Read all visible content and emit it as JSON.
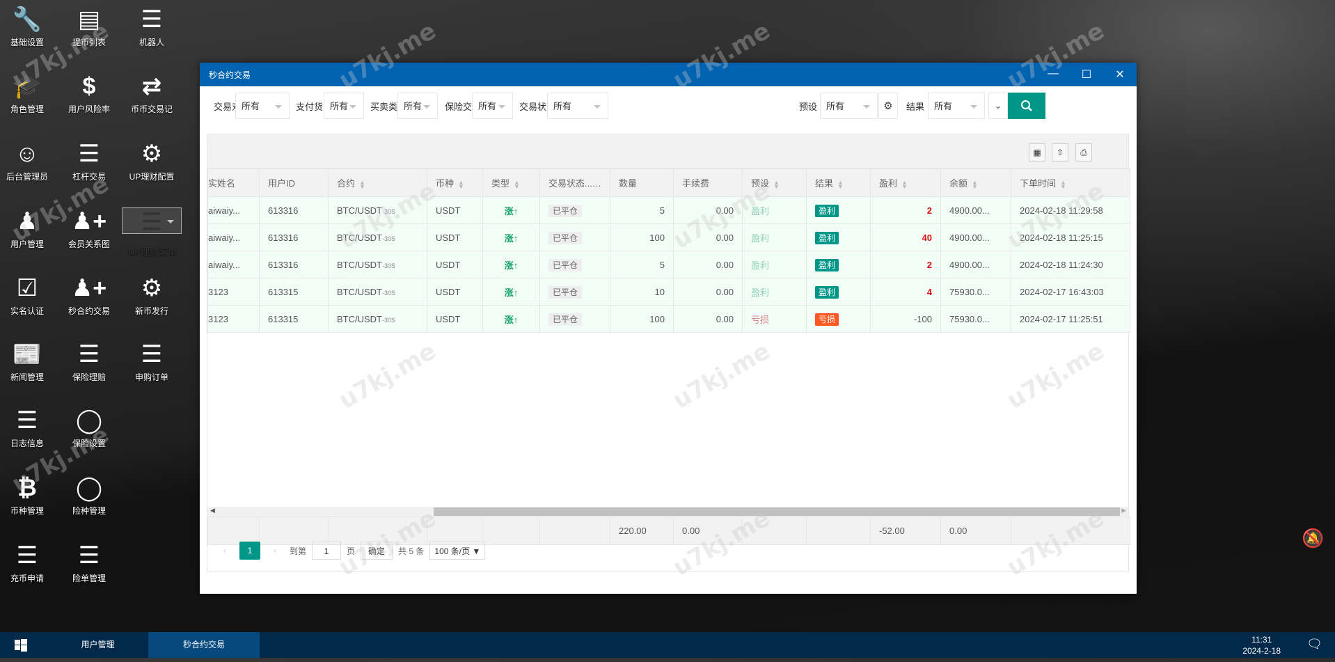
{
  "desktop": {
    "icons": [
      {
        "label": "基础设置",
        "icon": "wrench"
      },
      {
        "label": "提币列表",
        "icon": "card"
      },
      {
        "label": "机器人",
        "icon": "list"
      },
      {
        "label": "角色管理",
        "icon": "graduation-cap"
      },
      {
        "label": "用户风险率",
        "icon": "dollar"
      },
      {
        "label": "币币交易记",
        "icon": "exchange"
      },
      {
        "label": "后台管理员",
        "icon": "user-circle"
      },
      {
        "label": "杠杆交易",
        "icon": "list"
      },
      {
        "label": "UP理财配置",
        "icon": "gears"
      },
      {
        "label": "用户管理",
        "icon": "users"
      },
      {
        "label": "会员关系图",
        "icon": "user-plus"
      },
      {
        "label": "UP理财订单",
        "icon": "bars",
        "selected": true
      },
      {
        "label": "实名认证",
        "icon": "check-square"
      },
      {
        "label": "秒合约交易",
        "icon": "user-plus"
      },
      {
        "label": "新币发行",
        "icon": "gear"
      },
      {
        "label": "新闻管理",
        "icon": "newspaper"
      },
      {
        "label": "保险理赔",
        "icon": "list"
      },
      {
        "label": "申购订单",
        "icon": "bars"
      },
      {
        "label": "日志信息",
        "icon": "list"
      },
      {
        "label": "保险设置",
        "icon": "link-circle"
      },
      {
        "label": "币种管理",
        "icon": "bitcoin"
      },
      {
        "label": "险种管理",
        "icon": "link-circle"
      },
      {
        "label": "充币申请",
        "icon": "list"
      },
      {
        "label": "险单管理",
        "icon": "list"
      }
    ]
  },
  "window": {
    "title": "秒合约交易",
    "filters": [
      {
        "label": "交易对",
        "value": "所有"
      },
      {
        "label": "支付货币",
        "value": "所有"
      },
      {
        "label": "买卖类型",
        "value": "所有"
      },
      {
        "label": "保险交易",
        "value": "所有"
      },
      {
        "label": "交易状态",
        "value": "所有"
      },
      {
        "label": "预设",
        "value": "所有"
      },
      {
        "label": "结果",
        "value": "所有"
      }
    ],
    "table": {
      "columns": [
        "实姓名",
        "用户ID",
        "合约",
        "币种",
        "类型",
        "交易状态...",
        "数量",
        "手续费",
        "预设",
        "结果",
        "盈利",
        "余额",
        "下单时间"
      ],
      "rows": [
        {
          "name": "aiwaiy...",
          "uid": "613316",
          "contract": "BTC/USDT",
          "period": "-30S",
          "coin": "USDT",
          "type": "涨↑",
          "status": "已平仓",
          "qty": "5",
          "fee": "0.00",
          "preset": "盈利",
          "result": "盈利",
          "profit": "2",
          "balance": "4900.00...",
          "time": "2024-02-18 11:29:58"
        },
        {
          "name": "aiwaiy...",
          "uid": "613316",
          "contract": "BTC/USDT",
          "period": "-30S",
          "coin": "USDT",
          "type": "涨↑",
          "status": "已平仓",
          "qty": "100",
          "fee": "0.00",
          "preset": "盈利",
          "result": "盈利",
          "profit": "40",
          "balance": "4900.00...",
          "time": "2024-02-18 11:25:15"
        },
        {
          "name": "aiwaiy...",
          "uid": "613316",
          "contract": "BTC/USDT",
          "period": "-30S",
          "coin": "USDT",
          "type": "涨↑",
          "status": "已平仓",
          "qty": "5",
          "fee": "0.00",
          "preset": "盈利",
          "result": "盈利",
          "profit": "2",
          "balance": "4900.00...",
          "time": "2024-02-18 11:24:30"
        },
        {
          "name": "3123",
          "uid": "613315",
          "contract": "BTC/USDT",
          "period": "-30S",
          "coin": "USDT",
          "type": "涨↑",
          "status": "已平仓",
          "qty": "10",
          "fee": "0.00",
          "preset": "盈利",
          "result": "盈利",
          "profit": "4",
          "balance": "75930.0...",
          "time": "2024-02-17 16:43:03"
        },
        {
          "name": "3123",
          "uid": "613315",
          "contract": "BTC/USDT",
          "period": "-30S",
          "coin": "USDT",
          "type": "涨↑",
          "status": "已平仓",
          "qty": "100",
          "fee": "0.00",
          "preset": "亏损",
          "result": "亏损",
          "profit": "-100",
          "balance": "75930.0...",
          "time": "2024-02-17 11:25:51"
        }
      ],
      "totals": {
        "qty": "220.00",
        "fee": "0.00",
        "profit": "-52.00",
        "balance": "0.00"
      }
    },
    "pager": {
      "current": "1",
      "goto_label": "到第",
      "goto_value": "1",
      "page_label": "页",
      "confirm": "确定",
      "total": "共 5 条",
      "page_size": "100 条/页"
    }
  },
  "colors": {
    "titlebar": "#0062b1",
    "accent": "#009688",
    "win": "#009688",
    "loss": "#ff5722",
    "profit": "#dd1111"
  },
  "taskbar": {
    "items": [
      "用户管理",
      "秒合约交易"
    ],
    "time": "11:31",
    "date": "2024-2-18"
  },
  "watermark": "u7kj.me"
}
